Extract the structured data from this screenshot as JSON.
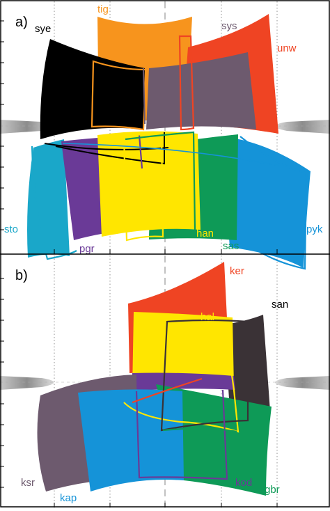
{
  "panels": {
    "a": {
      "label": "a)",
      "regions": [
        {
          "code": "sye",
          "color": "#000000"
        },
        {
          "code": "tig",
          "color": "#F7941D"
        },
        {
          "code": "sys",
          "color": "#6D5A6E"
        },
        {
          "code": "unw",
          "color": "#EF4423"
        },
        {
          "code": "sto",
          "color": "#1AA7C9"
        },
        {
          "code": "pgr",
          "color": "#6A3A97"
        },
        {
          "code": "han",
          "color": "#FFE600"
        },
        {
          "code": "sas",
          "color": "#0E9A57"
        },
        {
          "code": "pyk",
          "color": "#1593D8"
        }
      ]
    },
    "b": {
      "label": "b)",
      "regions": [
        {
          "code": "ker",
          "color": "#EF4423"
        },
        {
          "code": "san",
          "color": "#3A3236"
        },
        {
          "code": "hal",
          "color": "#FFE600"
        },
        {
          "code": "ksr",
          "color": "#6D5A6E"
        },
        {
          "code": "kap",
          "color": "#1593D8"
        },
        {
          "code": "kod",
          "color": "#6A3A97"
        },
        {
          "code": "gbr",
          "color": "#0E9A57"
        }
      ]
    }
  }
}
